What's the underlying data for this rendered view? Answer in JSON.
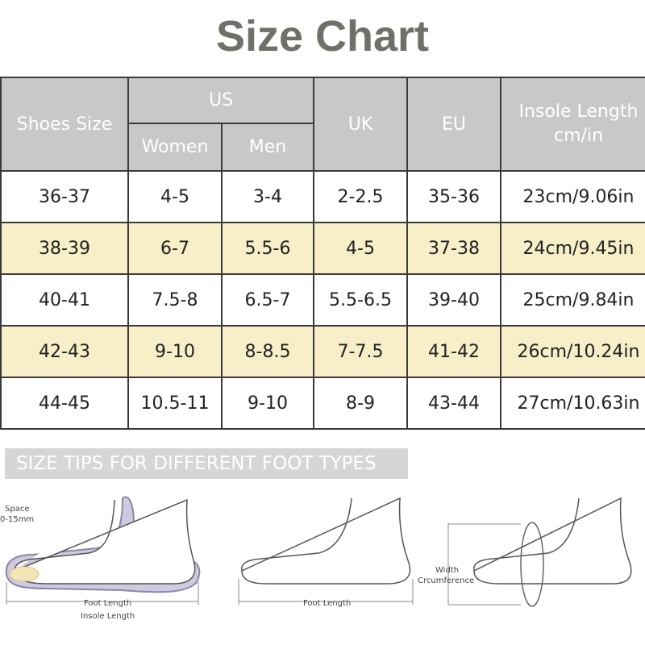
{
  "title": "Size Chart",
  "table": {
    "headers": {
      "shoes_size": "Shoes Size",
      "us": "US",
      "women": "Women",
      "men": "Men",
      "uk": "UK",
      "eu": "EU",
      "insole_line1": "Insole Length",
      "insole_line2": "cm/in"
    },
    "rows": [
      {
        "shoes": "36-37",
        "women": "4-5",
        "men": "3-4",
        "uk": "2-2.5",
        "eu": "35-36",
        "insole": "23cm/9.06in"
      },
      {
        "shoes": "38-39",
        "women": "6-7",
        "men": "5.5-6",
        "uk": "4-5",
        "eu": "37-38",
        "insole": "24cm/9.45in"
      },
      {
        "shoes": "40-41",
        "women": "7.5-8",
        "men": "6.5-7",
        "uk": "5.5-6.5",
        "eu": "39-40",
        "insole": "25cm/9.84in"
      },
      {
        "shoes": "42-43",
        "women": "9-10",
        "men": "8-8.5",
        "uk": "7-7.5",
        "eu": "41-42",
        "insole": "26cm/10.24in"
      },
      {
        "shoes": "44-45",
        "women": "10.5-11",
        "men": "9-10",
        "uk": "8-9",
        "eu": "43-44",
        "insole": "27cm/10.63in"
      }
    ]
  },
  "tips": {
    "banner": "SIZE TIPS FOR DIFFERENT FOOT TYPES",
    "diagram1": {
      "space_line1": "Space",
      "space_line2": "0-15mm",
      "foot_length": "Foot Length",
      "insole_length": "Insole Length"
    },
    "diagram2": {
      "foot_length": "Foot Length"
    },
    "diagram3": {
      "width_line1": "Width",
      "width_line2": "Crcumference"
    }
  },
  "colors": {
    "header_bg": "#c8c8c8",
    "alt_row_bg": "#f8eec8",
    "title_color": "#6f7068",
    "insole_outline": "#8c86a8"
  }
}
